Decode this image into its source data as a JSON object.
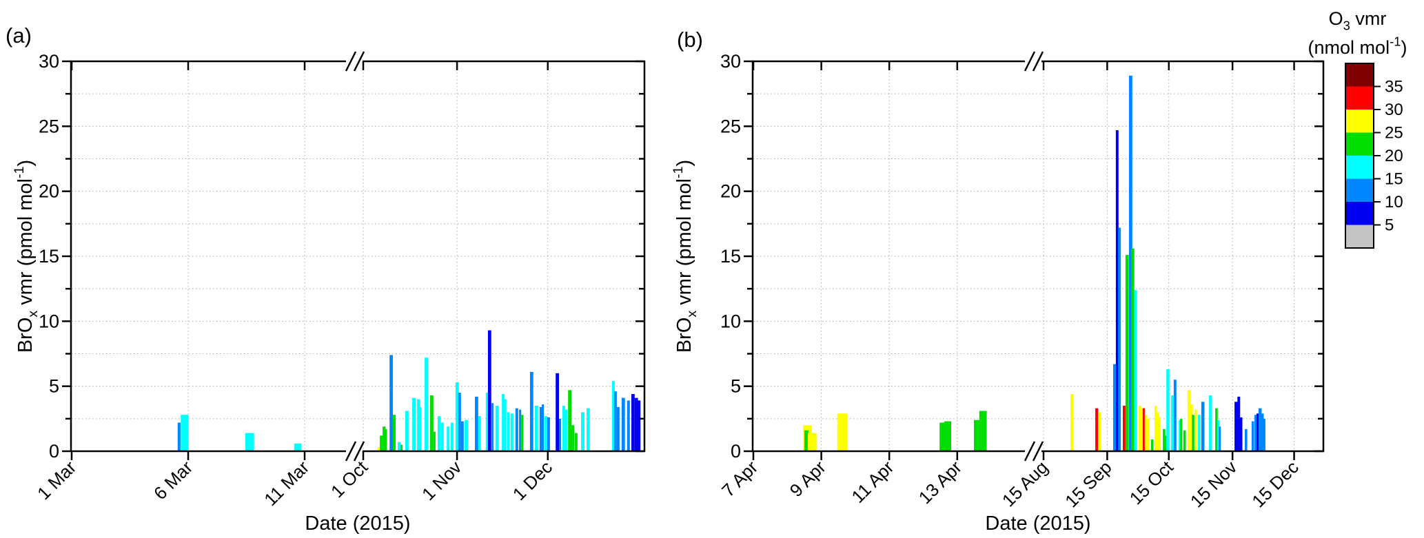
{
  "figure": {
    "panel_a_label": "(a)",
    "panel_b_label": "(b)",
    "background": "#ffffff"
  },
  "o3_bins": [
    {
      "range": "<5",
      "color": "#c4c4c4"
    },
    {
      "range": "5-10",
      "color": "#0000f0"
    },
    {
      "range": "10-15",
      "color": "#0087ff"
    },
    {
      "range": "15-20",
      "color": "#00ffff"
    },
    {
      "range": "20-25",
      "color": "#00dd00"
    },
    {
      "range": "25-30",
      "color": "#ffff00"
    },
    {
      "range": "30-35",
      "color": "#ff0000"
    },
    {
      "range": ">35",
      "color": "#7f0000"
    }
  ],
  "colorbar": {
    "title_rich": [
      [
        "t",
        "O"
      ],
      [
        "sub",
        "3"
      ],
      [
        "t",
        " vmr"
      ]
    ],
    "units_rich": [
      [
        "t",
        "(nmol mol"
      ],
      [
        "sup",
        "-1"
      ],
      [
        "t",
        ")"
      ]
    ],
    "tick_labels": [
      "35",
      "30",
      "25",
      "20",
      "15",
      "10",
      "5"
    ]
  },
  "chart_data": [
    {
      "type": "bar",
      "panel": "a",
      "xlabel": "Date (2015)",
      "ylabel_rich": [
        [
          "t",
          "BrO"
        ],
        [
          "sub",
          "x"
        ],
        [
          "t",
          " vmr (pmol mol"
        ],
        [
          "sup",
          "-1"
        ],
        [
          "t",
          ")"
        ]
      ],
      "ylim": [
        0,
        30
      ],
      "ytick_step": 5,
      "ytick_labels": [
        "0",
        "5",
        "10",
        "15",
        "20",
        "25",
        "30"
      ],
      "grid_step": 2.5,
      "legend": "color = O3 vmr bin",
      "bar_format": [
        "segment_index",
        "t_days_from_segment_start",
        "duration_days",
        "brox_pmol_mol",
        "o3_bin_index"
      ],
      "x_segments": [
        {
          "ticks": [
            {
              "label": "1 Mar",
              "t": 0
            },
            {
              "label": "6 Mar",
              "t": 5
            },
            {
              "label": "11 Mar",
              "t": 10
            }
          ]
        },
        {
          "ticks": [
            {
              "label": "1 Oct",
              "t": 0
            },
            {
              "label": "1 Nov",
              "t": 31
            },
            {
              "label": "1 Dec",
              "t": 61
            }
          ]
        }
      ],
      "bars": [
        [
          0,
          4.55,
          0.12,
          2.2,
          2
        ],
        [
          0,
          4.68,
          0.33,
          2.8,
          3
        ],
        [
          0,
          7.45,
          0.38,
          1.4,
          3
        ],
        [
          0,
          9.55,
          0.3,
          0.6,
          3
        ],
        [
          1,
          4.8,
          0.9,
          0.3,
          5
        ],
        [
          1,
          5.5,
          0.9,
          1.2,
          4
        ],
        [
          1,
          6.4,
          0.9,
          1.9,
          4
        ],
        [
          1,
          7.1,
          0.7,
          1.7,
          4
        ],
        [
          1,
          8.7,
          1.1,
          7.4,
          2
        ],
        [
          1,
          9.8,
          0.9,
          2.8,
          4
        ],
        [
          1,
          11.4,
          0.9,
          0.7,
          3
        ],
        [
          1,
          12.3,
          0.7,
          0.5,
          4
        ],
        [
          1,
          13.9,
          1.1,
          3.1,
          3
        ],
        [
          1,
          16.2,
          1.1,
          4.1,
          3
        ],
        [
          1,
          17.8,
          0.9,
          4.0,
          3
        ],
        [
          1,
          18.5,
          0.7,
          3.4,
          3
        ],
        [
          1,
          20.3,
          1.1,
          7.2,
          3
        ],
        [
          1,
          22.1,
          1.1,
          4.3,
          4
        ],
        [
          1,
          23.2,
          0.7,
          1.5,
          4
        ],
        [
          1,
          24.6,
          0.9,
          2.7,
          3
        ],
        [
          1,
          25.7,
          0.9,
          2.2,
          3
        ],
        [
          1,
          27.6,
          0.9,
          1.9,
          3
        ],
        [
          1,
          28.9,
          0.9,
          2.2,
          3
        ],
        [
          1,
          30.5,
          1.1,
          5.3,
          3
        ],
        [
          1,
          31.4,
          0.9,
          4.5,
          2
        ],
        [
          1,
          32.3,
          0.9,
          2.3,
          2
        ],
        [
          1,
          33.5,
          1.1,
          2.4,
          3
        ],
        [
          1,
          36.9,
          1.1,
          4.2,
          2
        ],
        [
          1,
          38.0,
          0.9,
          2.7,
          3
        ],
        [
          1,
          40.5,
          0.9,
          4.5,
          3
        ],
        [
          1,
          41.2,
          1.1,
          9.3,
          1
        ],
        [
          1,
          42.4,
          0.7,
          3.7,
          2
        ],
        [
          1,
          43.7,
          1.1,
          3.5,
          3
        ],
        [
          1,
          45.8,
          0.9,
          4.4,
          3
        ],
        [
          1,
          46.6,
          0.7,
          4.0,
          3
        ],
        [
          1,
          47.6,
          0.7,
          3.0,
          3
        ],
        [
          1,
          48.7,
          0.9,
          2.9,
          3
        ],
        [
          1,
          50.3,
          0.9,
          3.3,
          2
        ],
        [
          1,
          51.5,
          0.7,
          3.2,
          2
        ],
        [
          1,
          52.2,
          0.7,
          2.8,
          4
        ],
        [
          1,
          55.1,
          1.1,
          6.1,
          2
        ],
        [
          1,
          56.7,
          1.1,
          3.5,
          3
        ],
        [
          1,
          58.3,
          0.9,
          3.4,
          2
        ],
        [
          1,
          59.0,
          0.7,
          3.6,
          2
        ],
        [
          1,
          59.9,
          0.9,
          2.7,
          3
        ],
        [
          1,
          60.8,
          0.9,
          2.6,
          2
        ],
        [
          1,
          63.6,
          1.1,
          6.0,
          1
        ],
        [
          1,
          64.7,
          0.7,
          2.5,
          2
        ],
        [
          1,
          65.8,
          0.9,
          3.5,
          3
        ],
        [
          1,
          66.7,
          0.7,
          3.2,
          3
        ],
        [
          1,
          67.7,
          1.1,
          4.7,
          4
        ],
        [
          1,
          68.8,
          0.9,
          2.0,
          4
        ],
        [
          1,
          69.9,
          0.9,
          1.4,
          4
        ],
        [
          1,
          72.0,
          1.1,
          3.0,
          3
        ],
        [
          1,
          73.8,
          1.1,
          3.3,
          3
        ],
        [
          1,
          82.2,
          0.9,
          5.4,
          3
        ],
        [
          1,
          82.9,
          0.9,
          4.6,
          2
        ],
        [
          1,
          83.8,
          0.9,
          3.4,
          2
        ],
        [
          1,
          85.4,
          1.1,
          4.1,
          2
        ],
        [
          1,
          87.2,
          0.9,
          3.9,
          2
        ],
        [
          1,
          88.6,
          1.1,
          4.4,
          1
        ],
        [
          1,
          89.7,
          1.1,
          4.1,
          1
        ],
        [
          1,
          90.7,
          0.9,
          3.9,
          1
        ]
      ]
    },
    {
      "type": "bar",
      "panel": "b",
      "xlabel": "Date (2015)",
      "ylabel_rich": [
        [
          "t",
          "BrO"
        ],
        [
          "sub",
          "x"
        ],
        [
          "t",
          " vmr (pmol mol"
        ],
        [
          "sup",
          "-1"
        ],
        [
          "t",
          ")"
        ]
      ],
      "ylim": [
        0,
        30
      ],
      "ytick_step": 5,
      "ytick_labels": [
        "0",
        "5",
        "10",
        "15",
        "20",
        "25",
        "30"
      ],
      "grid_step": 2.5,
      "legend": "color = O3 vmr bin",
      "bar_format": [
        "segment_index",
        "t_days_from_segment_start",
        "duration_days",
        "brox_pmol_mol",
        "o3_bin_index"
      ],
      "x_segments": [
        {
          "ticks": [
            {
              "label": "7 Apr",
              "t": 0
            },
            {
              "label": "9 Apr",
              "t": 2
            },
            {
              "label": "11 Apr",
              "t": 4
            },
            {
              "label": "13 Apr",
              "t": 6
            }
          ]
        },
        {
          "ticks": [
            {
              "label": "15 Aug",
              "t": 0
            },
            {
              "label": "15 Sep",
              "t": 31
            },
            {
              "label": "15 Oct",
              "t": 61
            },
            {
              "label": "15 Nov",
              "t": 92
            },
            {
              "label": "15 Dec",
              "t": 122
            }
          ]
        }
      ],
      "bars": [
        [
          0,
          1.46,
          0.26,
          2.0,
          5
        ],
        [
          0,
          1.5,
          0.12,
          1.6,
          4
        ],
        [
          0,
          1.6,
          0.26,
          1.4,
          5
        ],
        [
          0,
          2.47,
          0.3,
          2.9,
          5
        ],
        [
          0,
          5.48,
          0.18,
          2.2,
          4
        ],
        [
          0,
          5.62,
          0.2,
          2.3,
          4
        ],
        [
          0,
          6.49,
          0.16,
          2.4,
          4
        ],
        [
          0,
          6.65,
          0.22,
          3.1,
          4
        ],
        [
          1,
          13.1,
          1.5,
          4.4,
          5
        ],
        [
          1,
          25.2,
          1.4,
          3.3,
          6
        ],
        [
          1,
          26.5,
          1.4,
          3.0,
          5
        ],
        [
          1,
          33.9,
          1.4,
          6.7,
          2
        ],
        [
          1,
          35.2,
          1.3,
          24.7,
          1
        ],
        [
          1,
          36.3,
          1.3,
          17.2,
          2
        ],
        [
          1,
          38.6,
          1.3,
          3.5,
          6
        ],
        [
          1,
          39.9,
          1.6,
          15.1,
          4
        ],
        [
          1,
          41.6,
          1.6,
          28.9,
          2
        ],
        [
          1,
          42.7,
          1.5,
          15.6,
          4
        ],
        [
          1,
          44.1,
          1.3,
          12.4,
          3
        ],
        [
          1,
          46.3,
          1.3,
          3.5,
          5
        ],
        [
          1,
          47.3,
          1.2,
          3.3,
          5
        ],
        [
          1,
          48.3,
          1.0,
          3.3,
          6
        ],
        [
          1,
          49.3,
          1.2,
          2.8,
          5
        ],
        [
          1,
          50.3,
          1.2,
          2.5,
          5
        ],
        [
          1,
          52.3,
          1.2,
          0.9,
          4
        ],
        [
          1,
          54.0,
          1.2,
          3.5,
          5
        ],
        [
          1,
          55.0,
          1.1,
          3.0,
          5
        ],
        [
          1,
          56.0,
          1.0,
          2.6,
          5
        ],
        [
          1,
          58.1,
          1.2,
          1.7,
          4
        ],
        [
          1,
          59.1,
          1.0,
          1.2,
          4
        ],
        [
          1,
          59.8,
          1.5,
          6.3,
          3
        ],
        [
          1,
          62.1,
          1.3,
          4.3,
          3
        ],
        [
          1,
          63.4,
          1.3,
          5.5,
          2
        ],
        [
          1,
          65.8,
          1.2,
          2.4,
          3
        ],
        [
          1,
          66.5,
          1.0,
          2.5,
          4
        ],
        [
          1,
          68.1,
          1.2,
          1.6,
          4
        ],
        [
          1,
          70.1,
          1.5,
          4.7,
          5
        ],
        [
          1,
          71.5,
          1.2,
          3.6,
          5
        ],
        [
          1,
          72.2,
          1.2,
          2.8,
          4
        ],
        [
          1,
          73.5,
          1.2,
          3.2,
          5
        ],
        [
          1,
          75.2,
          1.2,
          2.8,
          3
        ],
        [
          1,
          76.8,
          1.5,
          3.8,
          2
        ],
        [
          1,
          80.5,
          1.5,
          4.3,
          3
        ],
        [
          1,
          83.6,
          1.2,
          3.3,
          4
        ],
        [
          1,
          84.6,
          1.0,
          2.4,
          3
        ],
        [
          1,
          85.3,
          1.0,
          1.9,
          2
        ],
        [
          1,
          93.0,
          1.5,
          3.8,
          1
        ],
        [
          1,
          94.4,
          1.3,
          4.2,
          1
        ],
        [
          1,
          95.6,
          1.2,
          2.6,
          1
        ],
        [
          1,
          98.0,
          1.2,
          1.7,
          2
        ],
        [
          1,
          101.3,
          1.2,
          2.3,
          2
        ],
        [
          1,
          102.7,
          1.2,
          2.8,
          2
        ],
        [
          1,
          103.7,
          1.0,
          2.9,
          1
        ],
        [
          1,
          104.7,
          1.5,
          3.3,
          2
        ],
        [
          1,
          106.0,
          1.2,
          2.9,
          2
        ],
        [
          1,
          107.0,
          1.0,
          2.5,
          2
        ]
      ]
    }
  ]
}
